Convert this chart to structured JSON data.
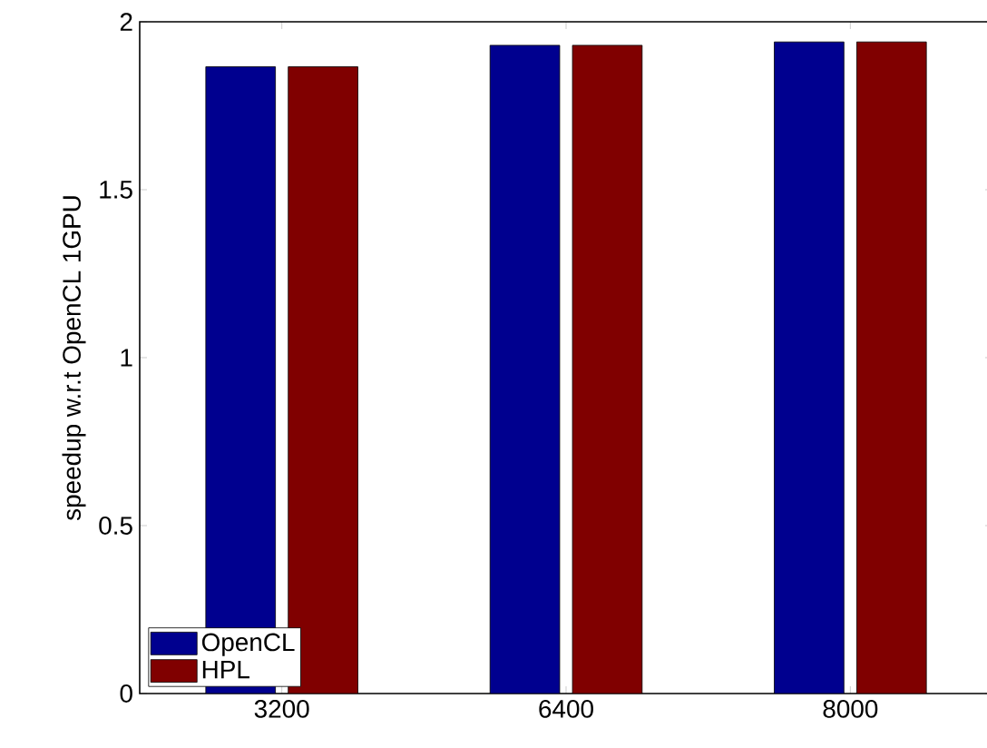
{
  "chart_data": {
    "type": "bar",
    "ylabel": "speedup w.r.t OpenCL 1GPU",
    "categories": [
      "3200",
      "6400",
      "8000"
    ],
    "series": [
      {
        "name": "OpenCL",
        "color": "#00008f",
        "values": [
          1.866,
          1.93,
          1.94
        ]
      },
      {
        "name": "HPL",
        "color": "#800000",
        "values": [
          1.866,
          1.93,
          1.94
        ]
      }
    ],
    "ylim": [
      0,
      2
    ],
    "yticks": [
      0,
      0.5,
      1,
      1.5,
      2
    ],
    "legend": "bottom left",
    "grid": false
  }
}
